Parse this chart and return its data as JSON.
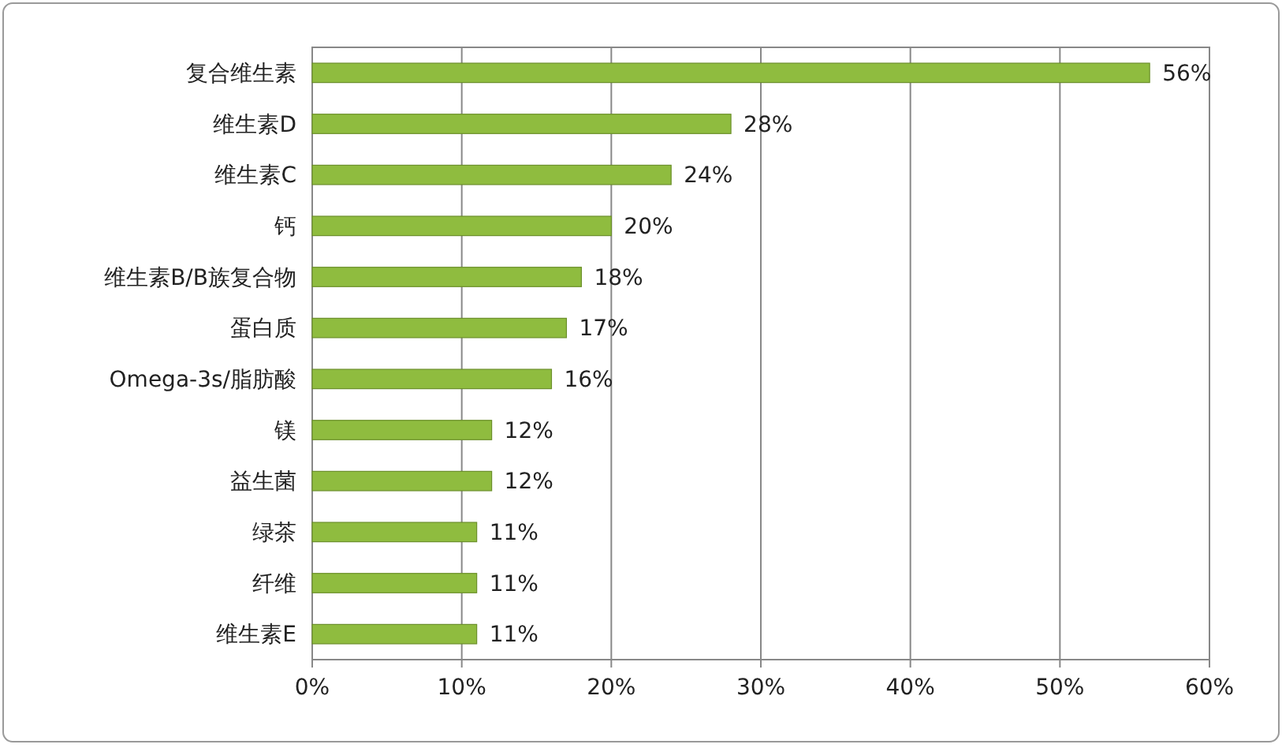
{
  "chart_data": {
    "type": "bar",
    "orientation": "horizontal",
    "categories": [
      "复合维生素",
      "维生素D",
      "维生素C",
      "钙",
      "维生素B/B族复合物",
      "蛋白质",
      "Omega-3s/脂肪酸",
      "镁",
      "益生菌",
      "绿茶",
      "纤维",
      "维生素E"
    ],
    "values": [
      56,
      28,
      24,
      20,
      18,
      17,
      16,
      12,
      12,
      11,
      11,
      11
    ],
    "value_labels": [
      "56%",
      "28%",
      "24%",
      "20%",
      "18%",
      "17%",
      "16%",
      "12%",
      "12%",
      "11%",
      "11%",
      "11%"
    ],
    "color": "#8fbc3f",
    "xlim": [
      0,
      60
    ],
    "xticks": [
      {
        "value": 0,
        "label": "0%"
      },
      {
        "value": 10,
        "label": "10%"
      },
      {
        "value": 20,
        "label": "20%"
      },
      {
        "value": 30,
        "label": "30%"
      },
      {
        "value": 40,
        "label": "40%"
      },
      {
        "value": 50,
        "label": "50%"
      },
      {
        "value": 60,
        "label": "60%"
      }
    ],
    "grid": "x"
  }
}
